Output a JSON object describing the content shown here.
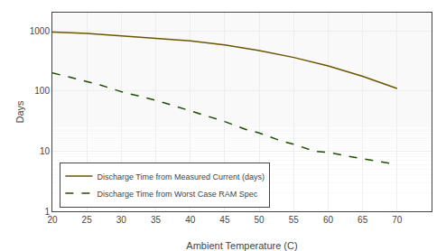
{
  "chart_data": {
    "type": "line",
    "xlabel": "Ambient Temperature (C)",
    "ylabel": "Days",
    "log": "y",
    "xlim": [
      20,
      75
    ],
    "ylim": [
      1,
      2000
    ],
    "xticks": [
      20,
      25,
      30,
      35,
      40,
      45,
      50,
      55,
      60,
      65,
      70
    ],
    "yticks": [
      1,
      10,
      100,
      1000
    ],
    "grid": true,
    "legend": "lower left",
    "series": [
      {
        "name": "Discharge Time from Measured Current (days)",
        "color": "#6b5500",
        "line_style": "solid",
        "x": [
          20,
          25,
          30,
          35,
          40,
          45,
          50,
          55,
          60,
          65,
          70
        ],
        "values": [
          950,
          900,
          820,
          750,
          680,
          580,
          470,
          360,
          260,
          175,
          110
        ]
      },
      {
        "name": "Discharge Time from Worst Case RAM Spec",
        "color": "#1e4d00",
        "line_style": "dashed",
        "x": [
          20,
          25,
          27,
          30,
          33,
          35,
          38,
          40,
          43,
          45,
          48,
          50,
          53,
          55,
          58,
          60,
          63,
          65,
          68,
          70
        ],
        "values": [
          200,
          145,
          125,
          97,
          80,
          70,
          55,
          47,
          37,
          31,
          23,
          20,
          15,
          13,
          10,
          9.5,
          8.2,
          7.5,
          6.5,
          6.0
        ]
      }
    ]
  }
}
